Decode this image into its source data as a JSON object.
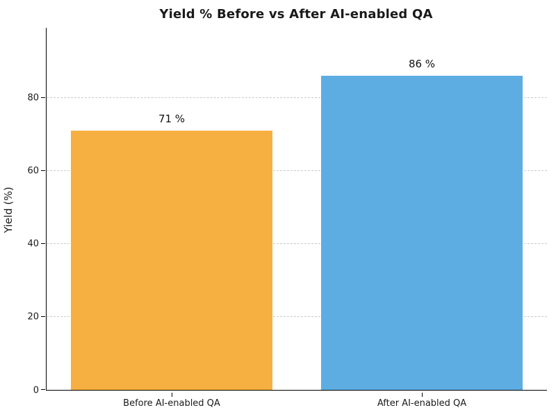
{
  "figure": {
    "title": "Yield % Before vs After AI-enabled QA",
    "ylabel": "Yield (%)"
  },
  "chart_data": {
    "type": "bar",
    "title": "Yield % Before vs After AI-enabled QA",
    "xlabel": "",
    "ylabel": "Yield (%)",
    "categories": [
      "Before AI-enabled QA",
      "After AI-enabled QA"
    ],
    "values": [
      71,
      86
    ],
    "value_labels": [
      "71 %",
      "86 %"
    ],
    "bar_colors": [
      "#f5b041",
      "#5dade2"
    ],
    "ylim": [
      0,
      99.2
    ],
    "yticks": [
      0,
      20,
      40,
      60,
      80
    ],
    "grid": "horizontal-dashed",
    "legend_position": "none",
    "bar_width_fraction": 0.806
  }
}
